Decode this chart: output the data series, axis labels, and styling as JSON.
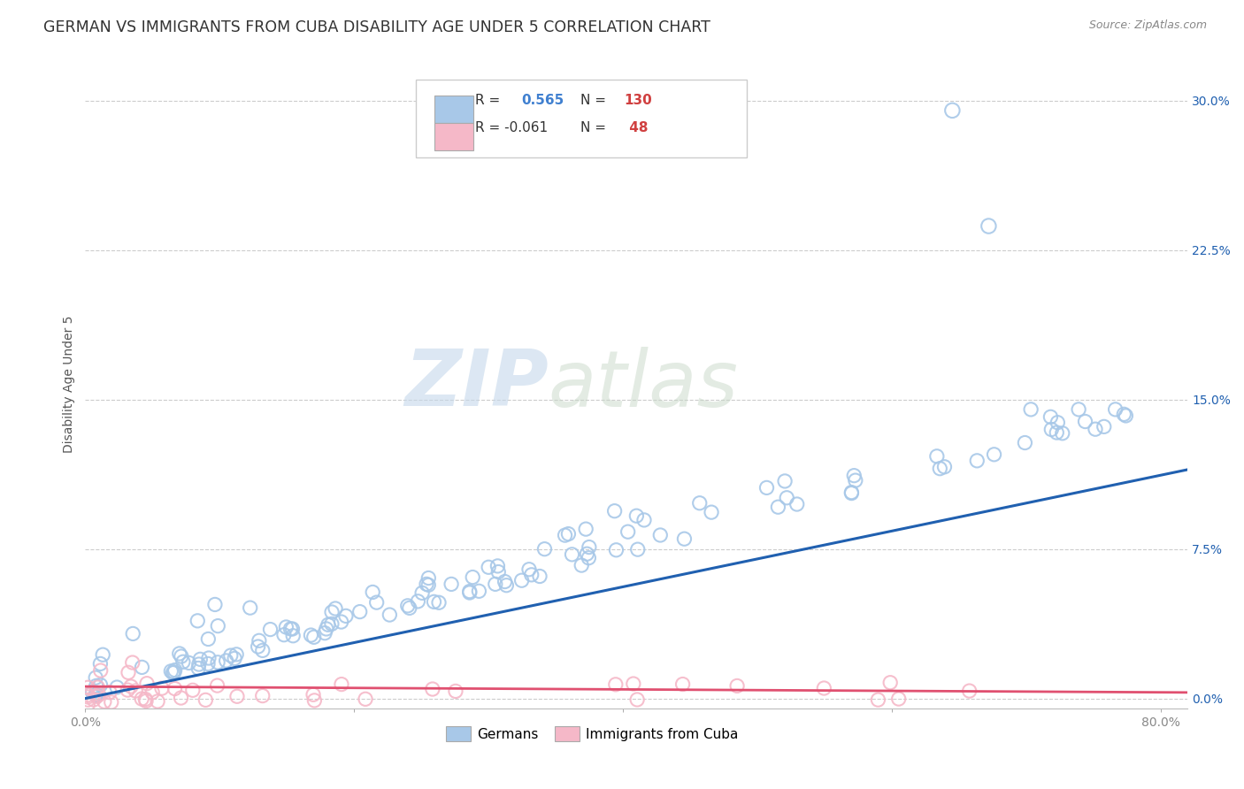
{
  "title": "GERMAN VS IMMIGRANTS FROM CUBA DISABILITY AGE UNDER 5 CORRELATION CHART",
  "source": "Source: ZipAtlas.com",
  "ylabel": "Disability Age Under 5",
  "watermark_zip": "ZIP",
  "watermark_atlas": "atlas",
  "xlim": [
    0.0,
    0.82
  ],
  "ylim": [
    -0.005,
    0.32
  ],
  "xticks": [
    0.0,
    0.2,
    0.4,
    0.6,
    0.8
  ],
  "xticklabels": [
    "0.0%",
    "",
    "",
    "",
    "80.0%"
  ],
  "yticks_right": [
    0.0,
    0.075,
    0.15,
    0.225,
    0.3
  ],
  "yticklabels_right": [
    "0.0%",
    "7.5%",
    "15.0%",
    "22.5%",
    "30.0%"
  ],
  "background_color": "#ffffff",
  "grid_color": "#cccccc",
  "blue_marker_color": "#a8c8e8",
  "pink_marker_color": "#f5b8c8",
  "blue_line_color": "#2060b0",
  "pink_line_color": "#e05070",
  "legend_text_color": "#333333",
  "legend_R_val_color": "#4080d0",
  "legend_N_val_color": "#d04040",
  "title_fontsize": 12.5,
  "axis_label_fontsize": 10,
  "tick_fontsize": 10,
  "source_fontsize": 9,
  "blue_line_y_start": 0.0,
  "blue_line_y_end": 0.112,
  "pink_line_y_start": 0.006,
  "pink_line_y_end": 0.003
}
